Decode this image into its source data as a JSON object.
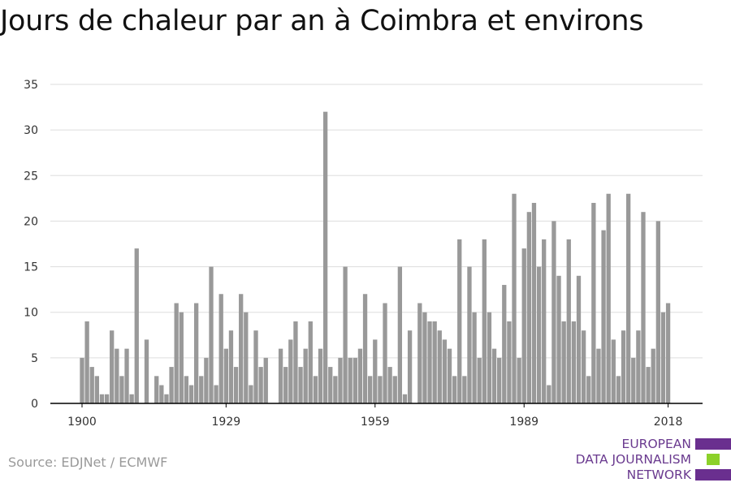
{
  "chart_data": {
    "type": "bar",
    "title": "Jours de chaleur par an à Coimbra et environs",
    "xlabel": "",
    "ylabel": "",
    "x": [
      1900,
      1901,
      1902,
      1903,
      1904,
      1905,
      1906,
      1907,
      1908,
      1909,
      1910,
      1911,
      1912,
      1913,
      1914,
      1915,
      1916,
      1917,
      1918,
      1919,
      1920,
      1921,
      1922,
      1923,
      1924,
      1925,
      1926,
      1927,
      1928,
      1929,
      1930,
      1931,
      1932,
      1933,
      1934,
      1935,
      1936,
      1937,
      1938,
      1939,
      1940,
      1941,
      1942,
      1943,
      1944,
      1945,
      1946,
      1947,
      1948,
      1949,
      1950,
      1951,
      1952,
      1953,
      1954,
      1955,
      1956,
      1957,
      1958,
      1959,
      1960,
      1961,
      1962,
      1963,
      1964,
      1965,
      1966,
      1967,
      1968,
      1969,
      1970,
      1971,
      1972,
      1973,
      1974,
      1975,
      1976,
      1977,
      1978,
      1979,
      1980,
      1981,
      1982,
      1983,
      1984,
      1985,
      1986,
      1987,
      1988,
      1989,
      1990,
      1991,
      1992,
      1993,
      1994,
      1995,
      1996,
      1997,
      1998,
      1999,
      2000,
      2001,
      2002,
      2003,
      2004,
      2005,
      2006,
      2007,
      2008,
      2009,
      2010,
      2011,
      2012,
      2013,
      2014,
      2015,
      2016,
      2017,
      2018
    ],
    "values": [
      5,
      9,
      4,
      3,
      1,
      1,
      8,
      6,
      3,
      6,
      1,
      17,
      0,
      7,
      0,
      3,
      2,
      1,
      4,
      11,
      10,
      3,
      2,
      11,
      3,
      5,
      15,
      2,
      12,
      6,
      8,
      4,
      12,
      10,
      2,
      8,
      4,
      5,
      0,
      0,
      6,
      4,
      7,
      9,
      4,
      6,
      9,
      3,
      6,
      32,
      4,
      3,
      5,
      15,
      5,
      5,
      6,
      12,
      3,
      7,
      3,
      11,
      4,
      3,
      15,
      1,
      8,
      0,
      11,
      10,
      9,
      9,
      8,
      7,
      6,
      3,
      18,
      3,
      15,
      10,
      5,
      18,
      10,
      6,
      5,
      13,
      9,
      23,
      5,
      17,
      21,
      22,
      15,
      18,
      2,
      20,
      14,
      9,
      18,
      9,
      14,
      8,
      3,
      22,
      6,
      19,
      23,
      7,
      3,
      8,
      23,
      5,
      8,
      21,
      4,
      6,
      20,
      10,
      11
    ],
    "xticks": [
      1900,
      1929,
      1959,
      1989,
      2018
    ],
    "yticks": [
      0,
      5,
      10,
      15,
      20,
      25,
      30,
      35
    ],
    "ylim": [
      0,
      35
    ],
    "grid": true,
    "bar_color": "#999999",
    "grid_color": "#dddddd"
  },
  "footer": {
    "source": "Source: EDJNet / ECMWF"
  },
  "logo": {
    "lines": [
      "EUROPEAN",
      "DATA JOURNALISM",
      "NETWORK"
    ],
    "text_color": "#6a3a8f",
    "bar_colors": [
      "#6a2f8f",
      "#8cd12a",
      "#6a2f8f"
    ]
  }
}
